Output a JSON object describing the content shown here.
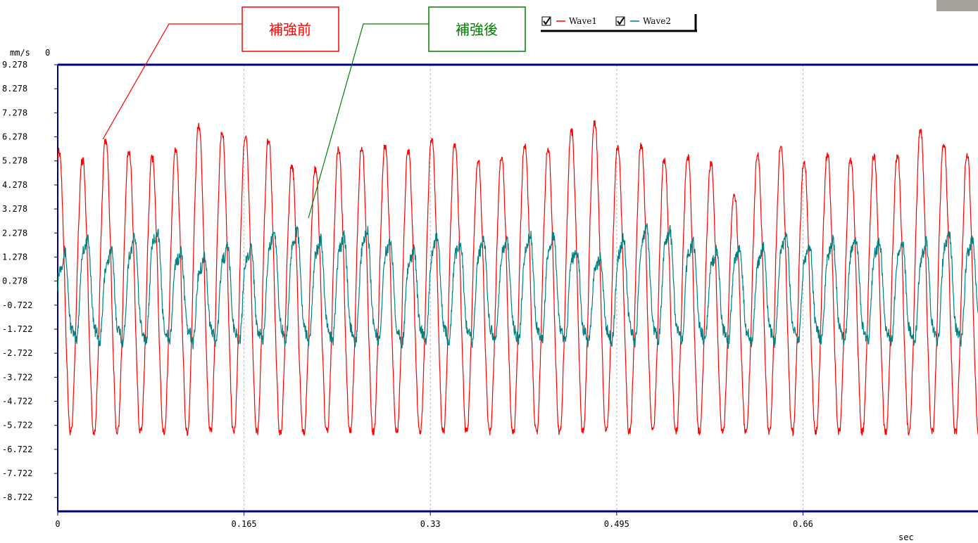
{
  "chart_data": {
    "type": "line",
    "ylabel": "mm/s",
    "xlabel": "sec",
    "y_top_label": "0",
    "xlim": [
      0,
      0.815
    ],
    "ylim": [
      -9.3,
      9.278
    ],
    "y_ticks": [
      9.278,
      8.278,
      7.278,
      6.278,
      5.278,
      4.278,
      3.278,
      2.278,
      1.278,
      0.278,
      -0.722,
      -1.722,
      -2.722,
      -3.722,
      -4.722,
      -5.722,
      -6.722,
      -7.722,
      -8.722
    ],
    "x_ticks": [
      0,
      0.165,
      0.33,
      0.495,
      0.66
    ],
    "grid": "vertical dashed at x ticks",
    "legend_position": "top",
    "legend": [
      {
        "name": "Wave1",
        "checked": true,
        "color": "#ff0000"
      },
      {
        "name": "Wave2",
        "checked": true,
        "color": "#008080"
      }
    ],
    "series": [
      {
        "name": "Wave1",
        "color": "#ff0000",
        "frequency_hz": 48.5,
        "approx_amplitude": 6.2,
        "offset": -0.3,
        "x": [
          0.0,
          0.02,
          0.04,
          0.06,
          0.08,
          0.1,
          0.12,
          0.14,
          0.16,
          0.18,
          0.2,
          0.22,
          0.24,
          0.26,
          0.28,
          0.3,
          0.32,
          0.34,
          0.36,
          0.38,
          0.4,
          0.42,
          0.44,
          0.46,
          0.48,
          0.5,
          0.52,
          0.54,
          0.56,
          0.58,
          0.6,
          0.62,
          0.64,
          0.66,
          0.68,
          0.7,
          0.72,
          0.74,
          0.76,
          0.78,
          0.8
        ],
        "y_peaks": [
          5.8,
          5.3,
          6.3,
          5.8,
          5.5,
          5.5,
          6.9,
          6.6,
          6.3,
          6.6,
          5.4,
          4.6,
          5.7,
          6.0,
          5.9,
          6.0,
          5.6,
          6.8,
          5.4,
          5.3,
          5.6,
          6.1,
          5.7,
          6.9,
          7.0,
          5.7,
          6.1,
          5.3,
          5.6,
          5.2,
          3.8,
          5.6,
          5.9,
          5.3,
          5.6,
          5.4,
          5.6,
          5.3,
          6.7,
          6.2,
          5.6
        ]
      },
      {
        "name": "Wave2",
        "color": "#008080",
        "frequency_hz": 48.5,
        "approx_amplitude": 2.0,
        "offset": 0.2,
        "x": [
          0.0,
          0.02,
          0.04,
          0.06,
          0.08,
          0.1,
          0.12,
          0.14,
          0.16,
          0.18,
          0.2,
          0.22,
          0.24,
          0.26,
          0.28,
          0.3,
          0.32,
          0.34,
          0.36,
          0.38,
          0.4,
          0.42,
          0.44,
          0.46,
          0.48,
          0.5,
          0.52,
          0.54,
          0.56,
          0.58,
          0.6,
          0.62,
          0.64,
          0.66,
          0.68,
          0.7,
          0.72,
          0.74,
          0.76,
          0.78,
          0.8
        ],
        "y_peaks": [
          1.2,
          2.3,
          1.5,
          1.8,
          2.8,
          1.9,
          1.0,
          1.8,
          1.6,
          1.9,
          2.9,
          2.1,
          2.0,
          2.3,
          2.5,
          1.7,
          1.6,
          2.4,
          1.8,
          2.1,
          2.0,
          2.3,
          2.3,
          1.6,
          1.3,
          2.1,
          2.6,
          2.5,
          2.0,
          1.6,
          1.7,
          1.6,
          2.4,
          1.8,
          1.9,
          2.2,
          2.0,
          1.9,
          1.6,
          2.4,
          2.1
        ]
      }
    ],
    "annotations": [
      {
        "text": "補強前",
        "color": "#ff0000",
        "target_series": "Wave1",
        "target_x": 0.039,
        "target_y": 6.3
      },
      {
        "text": "補強後",
        "color": "#008000",
        "target_series": "Wave2",
        "target_x": 0.216,
        "target_y": 2.8
      }
    ]
  }
}
